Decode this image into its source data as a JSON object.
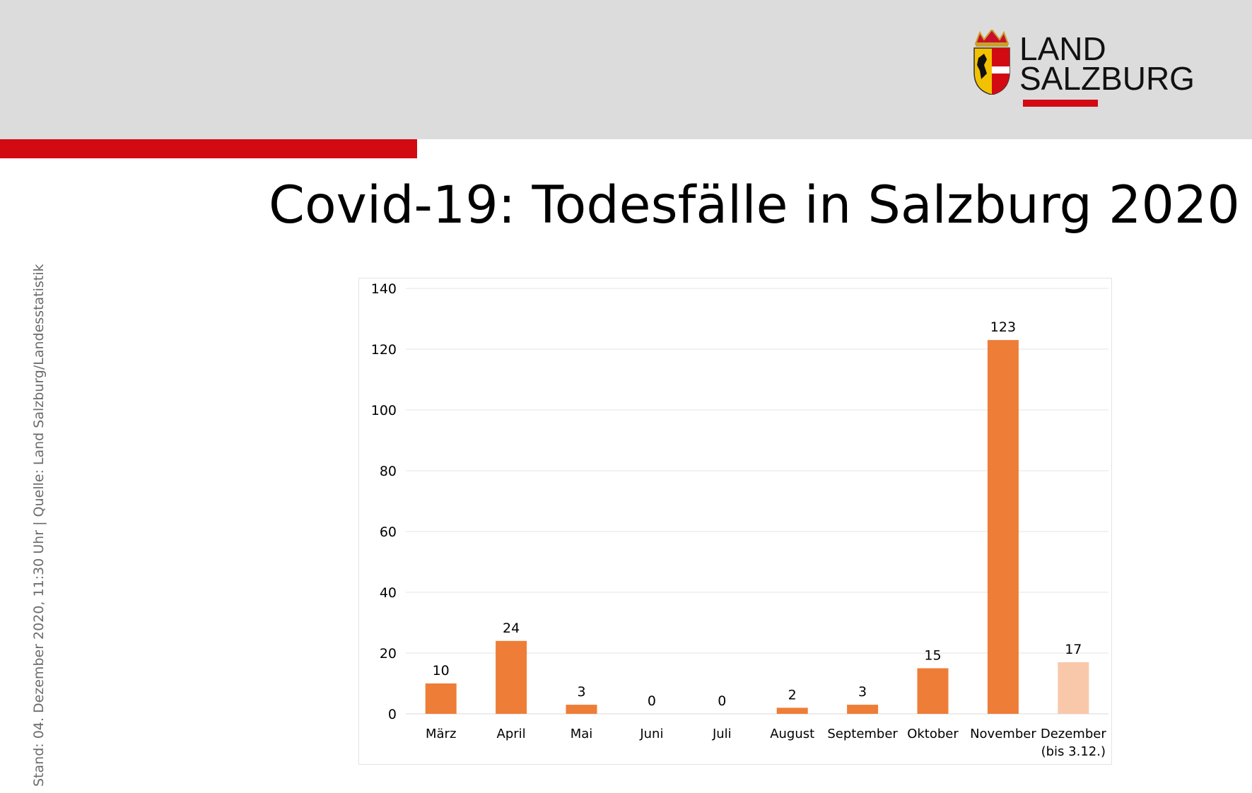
{
  "header": {
    "logo_line1": "LAND",
    "logo_line2": "SALZBURG"
  },
  "title": "Covid-19: Todesfälle in Salzburg 2020",
  "side_note": "Stand: 04. Dezember 2020, 11:30 Uhr  |  Quelle: Land Salzburg/Landesstatistik",
  "colors": {
    "header_bg": "#dcdcdc",
    "brand_red": "#d20a11",
    "bar": "#ee7d37",
    "bar_partial": "#f9c8ab",
    "grid": "#e5e5e5"
  },
  "chart_data": {
    "type": "bar",
    "categories": [
      "März",
      "April",
      "Mai",
      "Juni",
      "Juli",
      "August",
      "September",
      "Oktober",
      "November",
      "Dezember"
    ],
    "category_sublabels": [
      "",
      "",
      "",
      "",
      "",
      "",
      "",
      "",
      "",
      "(bis 3.12.)"
    ],
    "values": [
      10,
      24,
      3,
      0,
      0,
      2,
      3,
      15,
      123,
      17
    ],
    "highlight_partial_index": 9,
    "ylim": [
      0,
      140
    ],
    "yticks": [
      0,
      20,
      40,
      60,
      80,
      100,
      120,
      140
    ],
    "grid": true,
    "legend": "none",
    "data_labels": true
  }
}
